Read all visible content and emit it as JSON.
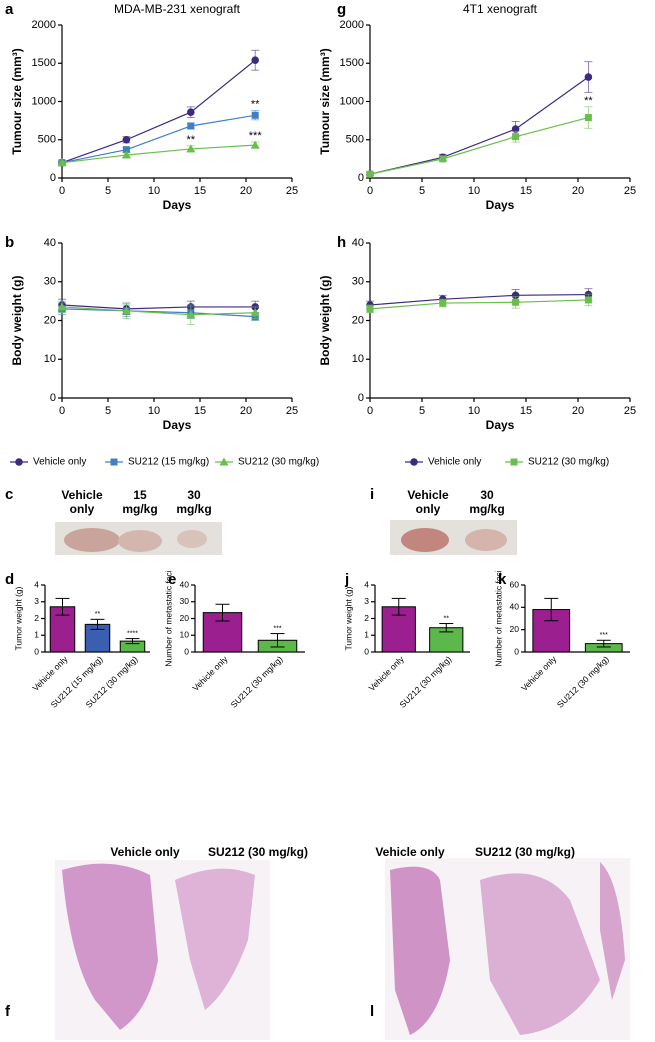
{
  "chart_data": [
    {
      "type": "line",
      "panel": "a",
      "title": "MDA-MB-231 xenograft",
      "xlabel": "Days",
      "ylabel": "Tumour size (mm³)",
      "x": [
        0,
        7,
        14,
        21
      ],
      "xlim": [
        0,
        25
      ],
      "xticks": [
        0,
        5,
        10,
        15,
        20,
        25
      ],
      "ylim": [
        0,
        2000
      ],
      "yticks": [
        0,
        500,
        1000,
        1500,
        2000
      ],
      "series": [
        {
          "name": "Vehicle only",
          "color": "#3d2a7f",
          "marker": "circle",
          "values": [
            200,
            500,
            860,
            1540
          ],
          "errors": [
            20,
            40,
            70,
            130
          ]
        },
        {
          "name": "SU212 (15 mg/kg)",
          "color": "#3f7fc4",
          "marker": "square",
          "values": [
            200,
            370,
            680,
            820
          ],
          "errors": [
            20,
            30,
            40,
            60
          ],
          "annotations": [
            null,
            null,
            null,
            "**"
          ]
        },
        {
          "name": "SU212 (30 mg/kg)",
          "color": "#6abf4b",
          "marker": "triangle",
          "values": [
            200,
            300,
            380,
            430
          ],
          "errors": [
            20,
            30,
            40,
            40
          ],
          "annotations": [
            null,
            null,
            "**",
            "***"
          ]
        }
      ]
    },
    {
      "type": "line",
      "panel": "g",
      "title": "4T1 xenograft",
      "xlabel": "Days",
      "ylabel": "Tumour size (mm³)",
      "x": [
        0,
        7,
        14,
        21
      ],
      "xlim": [
        0,
        25
      ],
      "xticks": [
        0,
        5,
        10,
        15,
        20,
        25
      ],
      "ylim": [
        0,
        2000
      ],
      "yticks": [
        0,
        500,
        1000,
        1500,
        2000
      ],
      "series": [
        {
          "name": "Vehicle only",
          "color": "#3d2a7f",
          "marker": "circle",
          "values": [
            50,
            270,
            640,
            1320
          ],
          "errors": [
            20,
            40,
            100,
            200
          ]
        },
        {
          "name": "SU212 (30 mg/kg)",
          "color": "#6abf4b",
          "marker": "square",
          "values": [
            50,
            250,
            540,
            790
          ],
          "errors": [
            20,
            30,
            70,
            140
          ],
          "annotations": [
            null,
            null,
            null,
            "**"
          ]
        }
      ]
    },
    {
      "type": "line",
      "panel": "b",
      "xlabel": "Days",
      "ylabel": "Body weight (g)",
      "x": [
        0,
        7,
        14,
        21
      ],
      "xlim": [
        0,
        25
      ],
      "xticks": [
        0,
        5,
        10,
        15,
        20,
        25
      ],
      "ylim": [
        0,
        40
      ],
      "yticks": [
        0,
        10,
        20,
        30,
        40
      ],
      "series": [
        {
          "color": "#3d2a7f",
          "marker": "circle",
          "values": [
            24,
            23,
            23.5,
            23.5
          ],
          "errors": [
            1.5,
            1.5,
            1.5,
            1.5
          ]
        },
        {
          "color": "#3f7fc4",
          "marker": "square",
          "values": [
            23,
            22.5,
            22,
            21
          ],
          "errors": [
            1.5,
            1.5,
            1.5,
            1
          ]
        },
        {
          "color": "#6abf4b",
          "marker": "triangle",
          "values": [
            23.5,
            22.5,
            21.5,
            22
          ],
          "errors": [
            1.5,
            2,
            2.5,
            1.5
          ]
        }
      ]
    },
    {
      "type": "line",
      "panel": "h",
      "xlabel": "Days",
      "ylabel": "Body weight (g)",
      "x": [
        0,
        7,
        14,
        21
      ],
      "xlim": [
        0,
        25
      ],
      "xticks": [
        0,
        5,
        10,
        15,
        20,
        25
      ],
      "ylim": [
        0,
        40
      ],
      "yticks": [
        0,
        10,
        20,
        30,
        40
      ],
      "series": [
        {
          "color": "#3d2a7f",
          "marker": "circle",
          "values": [
            24,
            25.5,
            26.5,
            26.7
          ],
          "errors": [
            1,
            1,
            1.5,
            1.5
          ]
        },
        {
          "color": "#6abf4b",
          "marker": "square",
          "values": [
            23,
            24.5,
            24.7,
            25.3
          ],
          "errors": [
            1,
            1,
            1.5,
            1.5
          ]
        }
      ]
    },
    {
      "type": "bar",
      "panel": "d",
      "ylabel": "Tumor weight (g)",
      "categories": [
        "Vehicle only",
        "SU212 (15 mg/kg)",
        "SU212 (30 mg/kg)"
      ],
      "values": [
        2.7,
        1.65,
        0.65
      ],
      "errors": [
        0.5,
        0.3,
        0.15
      ],
      "colors": [
        "#9b1f8f",
        "#3a5fb0",
        "#5cb84a"
      ],
      "annotations": [
        null,
        "**",
        "****"
      ],
      "ylim": [
        0,
        4
      ],
      "yticks": [
        0,
        1,
        2,
        3,
        4
      ]
    },
    {
      "type": "bar",
      "panel": "e",
      "ylabel": "Number of metastatic foci",
      "categories": [
        "Vehicle only",
        "SU212 (30 mg/kg)"
      ],
      "values": [
        23.5,
        7
      ],
      "errors": [
        5,
        4
      ],
      "colors": [
        "#9b1f8f",
        "#5cb84a"
      ],
      "annotations": [
        null,
        "***"
      ],
      "ylim": [
        0,
        40
      ],
      "yticks": [
        0,
        10,
        20,
        30,
        40
      ]
    },
    {
      "type": "bar",
      "panel": "j",
      "ylabel": "Tumor weight (g)",
      "categories": [
        "Vehicle only",
        "SU212 (30 mg/kg)"
      ],
      "values": [
        2.7,
        1.45
      ],
      "errors": [
        0.5,
        0.25
      ],
      "colors": [
        "#9b1f8f",
        "#5cb84a"
      ],
      "annotations": [
        null,
        "**"
      ],
      "ylim": [
        0,
        4
      ],
      "yticks": [
        0,
        1,
        2,
        3,
        4
      ]
    },
    {
      "type": "bar",
      "panel": "k",
      "ylabel": "Number of metastatic foci",
      "categories": [
        "Vehicle only",
        "SU212 (30 mg/kg)"
      ],
      "values": [
        38,
        7.5
      ],
      "errors": [
        10,
        3
      ],
      "colors": [
        "#9b1f8f",
        "#5cb84a"
      ],
      "annotations": [
        null,
        "***"
      ],
      "ylim": [
        0,
        60
      ],
      "yticks": [
        0,
        20,
        40,
        60
      ]
    }
  ],
  "photos": [
    {
      "panel": "c",
      "labels": [
        [
          "Vehicle",
          "only"
        ],
        [
          "15",
          "mg/kg"
        ],
        [
          "30",
          "mg/kg"
        ]
      ]
    },
    {
      "panel": "i",
      "labels": [
        [
          "Vehicle",
          "only"
        ],
        [
          "30",
          "mg/kg"
        ]
      ]
    }
  ],
  "histology": [
    {
      "panel": "f",
      "labels": [
        "Vehicle only",
        "SU212 (30 mg/kg)"
      ]
    },
    {
      "panel": "l",
      "labels": [
        "Vehicle only",
        "SU212 (30 mg/kg)"
      ]
    }
  ]
}
